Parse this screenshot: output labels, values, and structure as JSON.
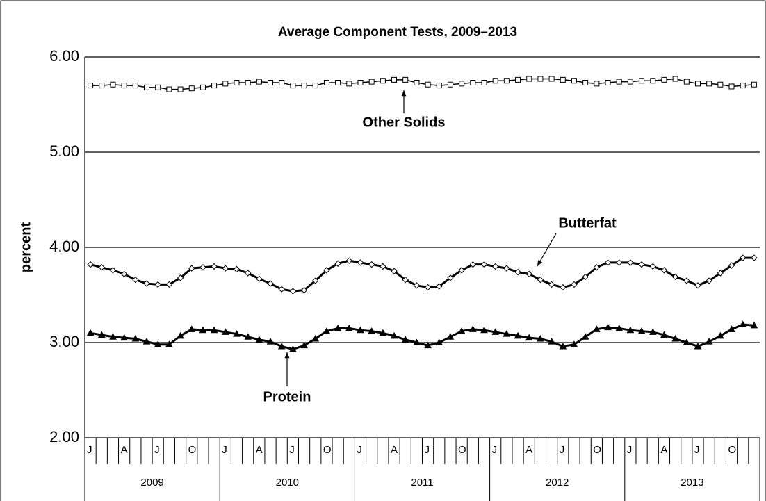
{
  "chart_data": {
    "type": "line",
    "title": "Average Component Tests, 2009–2013",
    "y_label": "percent",
    "categories": [
      "J",
      null,
      null,
      "A",
      null,
      null,
      "J",
      null,
      null,
      "O",
      null,
      null,
      "J",
      null,
      null,
      "A",
      null,
      null,
      "J",
      null,
      null,
      "O",
      null,
      null,
      "J",
      null,
      null,
      "A",
      null,
      null,
      "J",
      null,
      null,
      "O",
      null,
      null,
      "J",
      null,
      null,
      "A",
      null,
      null,
      "J",
      null,
      null,
      "O",
      null,
      null,
      "J",
      null,
      null,
      "A",
      null,
      null,
      "J",
      null,
      null,
      "O",
      null,
      null
    ],
    "groups": [
      "2009",
      "2010",
      "2011",
      "2012",
      "2013"
    ],
    "ylim": [
      2,
      6
    ],
    "yticks": [
      {
        "value": 2,
        "label": "2.00"
      },
      {
        "value": 3,
        "label": "3.00"
      },
      {
        "value": 4,
        "label": "4.00"
      },
      {
        "value": 5,
        "label": "5.00"
      },
      {
        "value": 6,
        "label": "6.00"
      }
    ],
    "grid": true,
    "series": [
      {
        "name": "Other Solids",
        "color": "#000000",
        "marker": "square",
        "values": [
          5.7,
          5.7,
          5.71,
          5.7,
          5.7,
          5.68,
          5.68,
          5.66,
          5.66,
          5.67,
          5.68,
          5.7,
          5.72,
          5.73,
          5.73,
          5.74,
          5.73,
          5.73,
          5.7,
          5.7,
          5.7,
          5.73,
          5.73,
          5.72,
          5.73,
          5.74,
          5.75,
          5.76,
          5.76,
          5.73,
          5.71,
          5.7,
          5.71,
          5.72,
          5.73,
          5.73,
          5.75,
          5.75,
          5.76,
          5.77,
          5.77,
          5.77,
          5.76,
          5.75,
          5.73,
          5.72,
          5.73,
          5.74,
          5.74,
          5.75,
          5.75,
          5.76,
          5.77,
          5.74,
          5.72,
          5.72,
          5.71,
          5.69,
          5.7,
          5.71
        ]
      },
      {
        "name": "Butterfat",
        "color": "#000000",
        "marker": "diamond",
        "values": [
          3.82,
          3.79,
          3.76,
          3.72,
          3.66,
          3.62,
          3.61,
          3.61,
          3.68,
          3.78,
          3.79,
          3.8,
          3.78,
          3.77,
          3.73,
          3.67,
          3.62,
          3.56,
          3.54,
          3.55,
          3.65,
          3.76,
          3.83,
          3.86,
          3.84,
          3.82,
          3.8,
          3.75,
          3.66,
          3.6,
          3.58,
          3.59,
          3.68,
          3.76,
          3.82,
          3.82,
          3.8,
          3.78,
          3.74,
          3.72,
          3.66,
          3.61,
          3.58,
          3.61,
          3.69,
          3.79,
          3.84,
          3.84,
          3.84,
          3.82,
          3.8,
          3.76,
          3.69,
          3.65,
          3.6,
          3.65,
          3.73,
          3.81,
          3.89,
          3.89
        ]
      },
      {
        "name": "Protein",
        "color": "#000000",
        "marker": "triangle",
        "values": [
          3.1,
          3.08,
          3.06,
          3.05,
          3.04,
          3.01,
          2.98,
          2.98,
          3.07,
          3.14,
          3.13,
          3.13,
          3.11,
          3.09,
          3.06,
          3.03,
          3.01,
          2.96,
          2.93,
          2.97,
          3.04,
          3.12,
          3.15,
          3.15,
          3.13,
          3.12,
          3.1,
          3.07,
          3.03,
          3.0,
          2.97,
          3.0,
          3.06,
          3.12,
          3.14,
          3.13,
          3.11,
          3.09,
          3.07,
          3.05,
          3.04,
          3.01,
          2.96,
          2.98,
          3.06,
          3.14,
          3.16,
          3.15,
          3.13,
          3.12,
          3.11,
          3.08,
          3.04,
          3.0,
          2.96,
          3.01,
          3.07,
          3.14,
          3.19,
          3.18
        ]
      }
    ]
  }
}
